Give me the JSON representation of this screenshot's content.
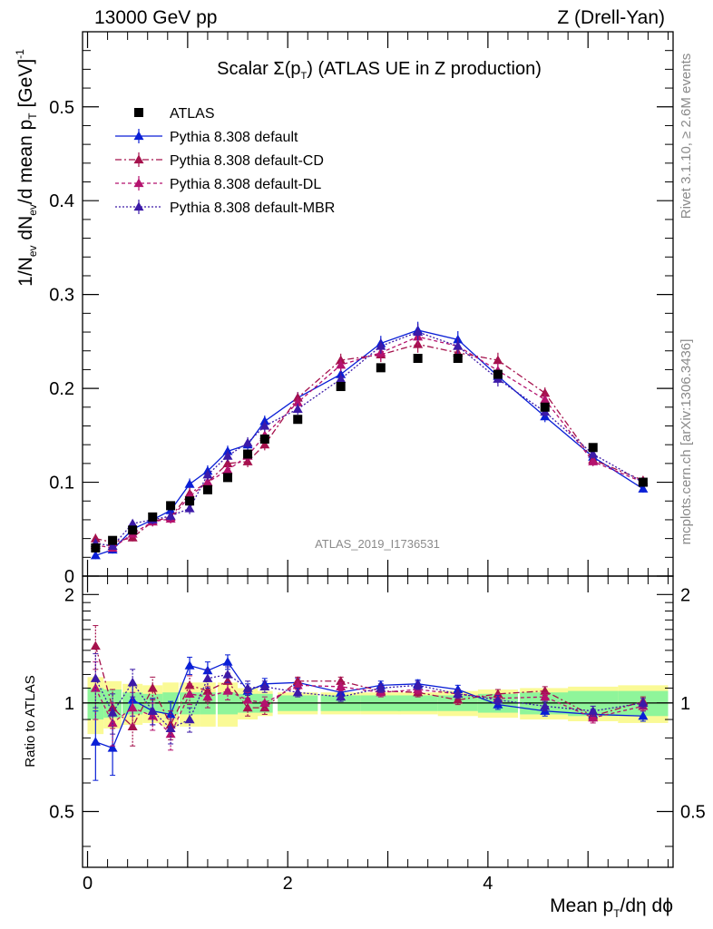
{
  "header": {
    "left": "13000 GeV pp",
    "right": "Z (Drell-Yan)"
  },
  "side": {
    "rivet": "Rivet 3.1.10, ≥ 2.6M events",
    "mcplots": "mcplots.cern.ch [arXiv:1306.3436]"
  },
  "watermark": "ATLAS_2019_I1736531",
  "colors": {
    "data": "#000000",
    "default": "#0a1fd6",
    "cd": "#a5114c",
    "dl": "#b4126e",
    "mbr": "#3c1aa8",
    "band_inner": "#8ff59a",
    "band_outer": "#fafa96"
  },
  "chart_data": {
    "type": "scatter",
    "title": "Scalar Σ(p_T) (ATLAS UE in Z production)",
    "title_parts": {
      "main": "Scalar Σ(p",
      "sub": "T",
      "rest": ") (ATLAS UE in Z production)"
    },
    "xlabel": "Mean p_T/dη dϕ",
    "xlabel_parts": {
      "main": "Mean p",
      "sub": "T",
      "rest": "/dη dϕ"
    },
    "ylabel": "1/N_ev dN_ev/d mean p_T [GeV]^-1",
    "ylabel_parts": [
      "1/N",
      "ev",
      " dN",
      "ev",
      "/d mean p",
      "T",
      " [GeV]",
      "-1"
    ],
    "ratio_ylabel": "Ratio to ATLAS",
    "xlim": [
      -0.05,
      5.85
    ],
    "ylim": [
      0,
      0.58
    ],
    "ratio_ylim": [
      0.35,
      2.25
    ],
    "xticks": [
      0,
      2,
      4
    ],
    "xtick_labels": [
      "0",
      "2",
      "4"
    ],
    "yticks": [
      0,
      0.1,
      0.2,
      0.3,
      0.4,
      0.5
    ],
    "ytick_labels": [
      "0",
      "0.1",
      "0.2",
      "0.3",
      "0.4",
      "0.5"
    ],
    "ratio_yticks": [
      0.5,
      1,
      2
    ],
    "ratio_ytick_labels": [
      "0.5",
      "1",
      "2"
    ],
    "legend_position": "top-left",
    "x": [
      0.08,
      0.25,
      0.45,
      0.65,
      0.83,
      1.02,
      1.2,
      1.4,
      1.6,
      1.77,
      2.1,
      2.53,
      2.93,
      3.3,
      3.7,
      4.1,
      4.57,
      5.05,
      5.55
    ],
    "x_errors": [
      0.08,
      0.09,
      0.1,
      0.1,
      0.08,
      0.1,
      0.08,
      0.1,
      0.1,
      0.08,
      0.2,
      0.2,
      0.2,
      0.2,
      0.2,
      0.2,
      0.25,
      0.25,
      0.25
    ],
    "data": {
      "name": "ATLAS",
      "values": [
        0.03,
        0.038,
        0.049,
        0.063,
        0.075,
        0.08,
        0.092,
        0.105,
        0.13,
        0.146,
        0.167,
        0.202,
        0.222,
        0.232,
        0.232,
        0.215,
        0.18,
        0.137,
        0.1
      ],
      "errors": [
        0.003,
        0.003,
        0.003,
        0.003,
        0.003,
        0.003,
        0.004,
        0.004,
        0.004,
        0.004,
        0.004,
        0.004,
        0.004,
        0.004,
        0.004,
        0.004,
        0.004,
        0.003,
        0.003
      ]
    },
    "band": {
      "inner": [
        0.1,
        0.09,
        0.07,
        0.06,
        0.07,
        0.07,
        0.07,
        0.07,
        0.06,
        0.06,
        0.05,
        0.05,
        0.05,
        0.05,
        0.05,
        0.06,
        0.07,
        0.08,
        0.08
      ],
      "outer": [
        0.18,
        0.15,
        0.13,
        0.12,
        0.14,
        0.14,
        0.14,
        0.14,
        0.1,
        0.08,
        0.07,
        0.07,
        0.07,
        0.07,
        0.08,
        0.09,
        0.1,
        0.11,
        0.12
      ]
    },
    "series": [
      {
        "name": "Pythia 8.308 default",
        "key": "default",
        "dash": "",
        "values": [
          0.022,
          0.028,
          0.05,
          0.06,
          0.07,
          0.098,
          0.112,
          0.133,
          0.14,
          0.165,
          0.19,
          0.215,
          0.248,
          0.262,
          0.252,
          0.213,
          0.17,
          0.127,
          0.093
        ],
        "errors": [
          0.004,
          0.004,
          0.004,
          0.005,
          0.005,
          0.006,
          0.006,
          0.006,
          0.006,
          0.006,
          0.006,
          0.007,
          0.008,
          0.009,
          0.009,
          0.008,
          0.006,
          0.005,
          0.004
        ],
        "ratio": [
          0.78,
          0.75,
          1.02,
          0.95,
          0.93,
          1.27,
          1.23,
          1.3,
          1.08,
          1.13,
          1.14,
          1.07,
          1.12,
          1.13,
          1.09,
          0.99,
          0.95,
          0.93,
          0.92
        ],
        "ratio_errors": [
          0.17,
          0.12,
          0.1,
          0.08,
          0.08,
          0.07,
          0.07,
          0.06,
          0.05,
          0.04,
          0.03,
          0.03,
          0.03,
          0.03,
          0.03,
          0.03,
          0.03,
          0.03,
          0.03
        ]
      },
      {
        "name": "Pythia 8.308 default-CD",
        "key": "cd",
        "dash": "7,3,2,3",
        "values": [
          0.04,
          0.036,
          0.041,
          0.058,
          0.063,
          0.088,
          0.1,
          0.12,
          0.122,
          0.14,
          0.19,
          0.23,
          0.236,
          0.247,
          0.238,
          0.23,
          0.195,
          0.124,
          0.102
        ],
        "errors": [
          0.005,
          0.004,
          0.004,
          0.005,
          0.005,
          0.006,
          0.006,
          0.006,
          0.006,
          0.006,
          0.006,
          0.007,
          0.008,
          0.009,
          0.009,
          0.008,
          0.006,
          0.005,
          0.004
        ],
        "ratio": [
          1.44,
          0.97,
          0.86,
          1.1,
          0.87,
          1.12,
          1.08,
          1.15,
          0.97,
          0.97,
          1.15,
          1.15,
          1.08,
          1.07,
          1.02,
          1.06,
          1.08,
          0.92,
          1.01
        ],
        "ratio_errors": [
          0.2,
          0.12,
          0.1,
          0.08,
          0.08,
          0.07,
          0.07,
          0.06,
          0.05,
          0.04,
          0.03,
          0.03,
          0.03,
          0.03,
          0.03,
          0.03,
          0.03,
          0.03,
          0.03
        ]
      },
      {
        "name": "Pythia 8.308 default-DL",
        "key": "dl",
        "dash": "4,3",
        "values": [
          0.033,
          0.03,
          0.045,
          0.058,
          0.061,
          0.085,
          0.1,
          0.113,
          0.128,
          0.15,
          0.185,
          0.225,
          0.238,
          0.255,
          0.245,
          0.219,
          0.188,
          0.122,
          0.1
        ],
        "errors": [
          0.005,
          0.004,
          0.004,
          0.005,
          0.005,
          0.006,
          0.006,
          0.006,
          0.006,
          0.006,
          0.006,
          0.007,
          0.008,
          0.009,
          0.009,
          0.008,
          0.006,
          0.005,
          0.004
        ],
        "ratio": [
          1.1,
          0.88,
          0.97,
          0.92,
          0.82,
          1.06,
          1.04,
          1.08,
          1.02,
          1.0,
          1.12,
          1.11,
          1.07,
          1.09,
          1.06,
          1.03,
          1.04,
          0.91,
          0.98
        ],
        "ratio_errors": [
          0.2,
          0.12,
          0.1,
          0.08,
          0.08,
          0.07,
          0.07,
          0.06,
          0.05,
          0.04,
          0.03,
          0.03,
          0.03,
          0.03,
          0.03,
          0.03,
          0.03,
          0.03,
          0.03
        ]
      },
      {
        "name": "Pythia 8.308 default-MBR",
        "key": "mbr",
        "dash": "2,2",
        "values": [
          0.035,
          0.032,
          0.056,
          0.06,
          0.064,
          0.072,
          0.108,
          0.128,
          0.142,
          0.16,
          0.178,
          0.21,
          0.245,
          0.26,
          0.245,
          0.21,
          0.175,
          0.13,
          0.1
        ],
        "errors": [
          0.005,
          0.004,
          0.004,
          0.005,
          0.005,
          0.006,
          0.006,
          0.006,
          0.006,
          0.006,
          0.006,
          0.007,
          0.008,
          0.009,
          0.009,
          0.008,
          0.006,
          0.005,
          0.004
        ],
        "ratio": [
          1.17,
          0.94,
          1.14,
          0.95,
          0.85,
          0.9,
          1.17,
          1.2,
          1.1,
          1.11,
          1.07,
          1.04,
          1.1,
          1.12,
          1.06,
          1.02,
          0.98,
          0.95,
          1.0
        ],
        "ratio_errors": [
          0.2,
          0.12,
          0.1,
          0.08,
          0.08,
          0.07,
          0.07,
          0.06,
          0.05,
          0.04,
          0.03,
          0.03,
          0.03,
          0.03,
          0.03,
          0.03,
          0.03,
          0.03,
          0.03
        ]
      }
    ]
  }
}
